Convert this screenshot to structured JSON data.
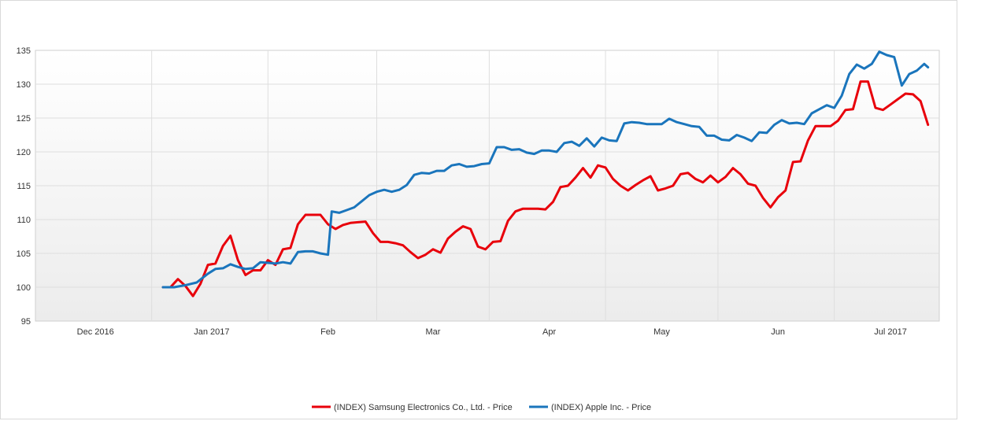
{
  "chart_data": {
    "type": "line",
    "title": "",
    "xlabel": "",
    "ylabel": "",
    "ylim": [
      95,
      135
    ],
    "yticks": [
      95,
      100,
      105,
      110,
      115,
      120,
      125,
      130,
      135
    ],
    "xlim": [
      "2016-11-15",
      "2017-07-14"
    ],
    "xticks": [
      {
        "label": "Dec 2016",
        "date": "2016-12-01"
      },
      {
        "label": "Jan 2017",
        "date": "2017-01-01"
      },
      {
        "label": "Feb",
        "date": "2017-02-01"
      },
      {
        "label": "Mar",
        "date": "2017-03-01"
      },
      {
        "label": "Apr",
        "date": "2017-04-01"
      },
      {
        "label": "May",
        "date": "2017-05-01"
      },
      {
        "label": "Jun",
        "date": "2017-06-01"
      },
      {
        "label": "Jul 2017",
        "date": "2017-07-01"
      }
    ],
    "grid": true,
    "legend_position": "bottom",
    "series": [
      {
        "name": "(INDEX) Samsung Electronics Co., Ltd. - Price",
        "color": "#e8000b",
        "points": [
          [
            "2016-12-19",
            100.0
          ],
          [
            "2016-12-21",
            100.0
          ],
          [
            "2016-12-23",
            101.2
          ],
          [
            "2016-12-25",
            100.2
          ],
          [
            "2016-12-27",
            98.7
          ],
          [
            "2016-12-29",
            100.5
          ],
          [
            "2016-12-31",
            103.3
          ],
          [
            "2017-01-02",
            103.5
          ],
          [
            "2017-01-04",
            106.1
          ],
          [
            "2017-01-06",
            107.6
          ],
          [
            "2017-01-08",
            104.0
          ],
          [
            "2017-01-10",
            101.8
          ],
          [
            "2017-01-12",
            102.5
          ],
          [
            "2017-01-14",
            102.5
          ],
          [
            "2017-01-16",
            104.0
          ],
          [
            "2017-01-18",
            103.3
          ],
          [
            "2017-01-20",
            105.6
          ],
          [
            "2017-01-22",
            105.8
          ],
          [
            "2017-01-24",
            109.3
          ],
          [
            "2017-01-26",
            110.7
          ],
          [
            "2017-01-28",
            110.7
          ],
          [
            "2017-01-30",
            110.7
          ],
          [
            "2017-02-01",
            109.3
          ],
          [
            "2017-02-03",
            108.6
          ],
          [
            "2017-02-05",
            109.2
          ],
          [
            "2017-02-07",
            109.5
          ],
          [
            "2017-02-09",
            109.6
          ],
          [
            "2017-02-11",
            109.7
          ],
          [
            "2017-02-13",
            108.0
          ],
          [
            "2017-02-15",
            106.7
          ],
          [
            "2017-02-17",
            106.7
          ],
          [
            "2017-02-19",
            106.5
          ],
          [
            "2017-02-21",
            106.2
          ],
          [
            "2017-02-23",
            105.2
          ],
          [
            "2017-02-25",
            104.3
          ],
          [
            "2017-02-27",
            104.8
          ],
          [
            "2017-03-01",
            105.6
          ],
          [
            "2017-03-03",
            105.1
          ],
          [
            "2017-03-05",
            107.2
          ],
          [
            "2017-03-07",
            108.2
          ],
          [
            "2017-03-09",
            109.0
          ],
          [
            "2017-03-11",
            108.6
          ],
          [
            "2017-03-13",
            106.0
          ],
          [
            "2017-03-15",
            105.6
          ],
          [
            "2017-03-17",
            106.7
          ],
          [
            "2017-03-19",
            106.8
          ],
          [
            "2017-03-21",
            109.8
          ],
          [
            "2017-03-23",
            111.2
          ],
          [
            "2017-03-25",
            111.6
          ],
          [
            "2017-03-27",
            111.6
          ],
          [
            "2017-03-29",
            111.6
          ],
          [
            "2017-03-31",
            111.5
          ],
          [
            "2017-04-02",
            112.6
          ],
          [
            "2017-04-04",
            114.8
          ],
          [
            "2017-04-06",
            115.0
          ],
          [
            "2017-04-08",
            116.2
          ],
          [
            "2017-04-10",
            117.6
          ],
          [
            "2017-04-12",
            116.2
          ],
          [
            "2017-04-14",
            118.0
          ],
          [
            "2017-04-16",
            117.7
          ],
          [
            "2017-04-18",
            116.0
          ],
          [
            "2017-04-20",
            115.0
          ],
          [
            "2017-04-22",
            114.3
          ],
          [
            "2017-04-24",
            115.1
          ],
          [
            "2017-04-26",
            115.8
          ],
          [
            "2017-04-28",
            116.4
          ],
          [
            "2017-04-30",
            114.3
          ],
          [
            "2017-05-02",
            114.6
          ],
          [
            "2017-05-04",
            115.0
          ],
          [
            "2017-05-06",
            116.7
          ],
          [
            "2017-05-08",
            116.9
          ],
          [
            "2017-05-10",
            116.0
          ],
          [
            "2017-05-12",
            115.5
          ],
          [
            "2017-05-14",
            116.5
          ],
          [
            "2017-05-16",
            115.5
          ],
          [
            "2017-05-18",
            116.3
          ],
          [
            "2017-05-20",
            117.6
          ],
          [
            "2017-05-22",
            116.7
          ],
          [
            "2017-05-24",
            115.3
          ],
          [
            "2017-05-26",
            115.0
          ],
          [
            "2017-05-28",
            113.2
          ],
          [
            "2017-05-30",
            111.8
          ],
          [
            "2017-06-01",
            113.3
          ],
          [
            "2017-06-03",
            114.3
          ],
          [
            "2017-06-05",
            118.5
          ],
          [
            "2017-06-07",
            118.6
          ],
          [
            "2017-06-09",
            121.7
          ],
          [
            "2017-06-11",
            123.8
          ],
          [
            "2017-06-13",
            123.8
          ],
          [
            "2017-06-15",
            123.8
          ],
          [
            "2017-06-17",
            124.6
          ],
          [
            "2017-06-19",
            126.2
          ],
          [
            "2017-06-21",
            126.3
          ],
          [
            "2017-06-23",
            130.4
          ],
          [
            "2017-06-25",
            130.4
          ],
          [
            "2017-06-27",
            126.5
          ],
          [
            "2017-06-29",
            126.2
          ],
          [
            "2017-07-01",
            127.0
          ],
          [
            "2017-07-03",
            127.8
          ],
          [
            "2017-07-05",
            128.6
          ],
          [
            "2017-07-07",
            128.5
          ],
          [
            "2017-07-09",
            127.5
          ],
          [
            "2017-07-11",
            124.0
          ]
        ]
      },
      {
        "name": "(INDEX) Apple Inc. - Price",
        "color": "#1a75bc",
        "points": [
          [
            "2016-12-19",
            100.0
          ],
          [
            "2016-12-22",
            100.0
          ],
          [
            "2016-12-25",
            100.3
          ],
          [
            "2016-12-28",
            100.7
          ],
          [
            "2016-12-31",
            102.0
          ],
          [
            "2017-01-02",
            102.7
          ],
          [
            "2017-01-04",
            102.8
          ],
          [
            "2017-01-06",
            103.4
          ],
          [
            "2017-01-08",
            103.0
          ],
          [
            "2017-01-10",
            102.7
          ],
          [
            "2017-01-12",
            102.8
          ],
          [
            "2017-01-14",
            103.7
          ],
          [
            "2017-01-16",
            103.6
          ],
          [
            "2017-01-18",
            103.5
          ],
          [
            "2017-01-20",
            103.7
          ],
          [
            "2017-01-22",
            103.5
          ],
          [
            "2017-01-24",
            105.2
          ],
          [
            "2017-01-26",
            105.3
          ],
          [
            "2017-01-28",
            105.3
          ],
          [
            "2017-01-30",
            105.0
          ],
          [
            "2017-02-01",
            104.8
          ],
          [
            "2017-02-02",
            111.2
          ],
          [
            "2017-02-04",
            111.0
          ],
          [
            "2017-02-06",
            111.4
          ],
          [
            "2017-02-08",
            111.8
          ],
          [
            "2017-02-10",
            112.7
          ],
          [
            "2017-02-12",
            113.6
          ],
          [
            "2017-02-14",
            114.1
          ],
          [
            "2017-02-16",
            114.4
          ],
          [
            "2017-02-18",
            114.1
          ],
          [
            "2017-02-20",
            114.4
          ],
          [
            "2017-02-22",
            115.1
          ],
          [
            "2017-02-24",
            116.6
          ],
          [
            "2017-02-26",
            116.9
          ],
          [
            "2017-02-28",
            116.8
          ],
          [
            "2017-03-02",
            117.2
          ],
          [
            "2017-03-04",
            117.2
          ],
          [
            "2017-03-06",
            118.0
          ],
          [
            "2017-03-08",
            118.2
          ],
          [
            "2017-03-10",
            117.8
          ],
          [
            "2017-03-12",
            117.9
          ],
          [
            "2017-03-14",
            118.2
          ],
          [
            "2017-03-16",
            118.3
          ],
          [
            "2017-03-18",
            120.7
          ],
          [
            "2017-03-20",
            120.7
          ],
          [
            "2017-03-22",
            120.3
          ],
          [
            "2017-03-24",
            120.4
          ],
          [
            "2017-03-26",
            119.9
          ],
          [
            "2017-03-28",
            119.7
          ],
          [
            "2017-03-30",
            120.2
          ],
          [
            "2017-04-01",
            120.2
          ],
          [
            "2017-04-03",
            120.0
          ],
          [
            "2017-04-05",
            121.3
          ],
          [
            "2017-04-07",
            121.5
          ],
          [
            "2017-04-09",
            120.9
          ],
          [
            "2017-04-11",
            122.0
          ],
          [
            "2017-04-13",
            120.8
          ],
          [
            "2017-04-15",
            122.1
          ],
          [
            "2017-04-17",
            121.7
          ],
          [
            "2017-04-19",
            121.6
          ],
          [
            "2017-04-21",
            124.2
          ],
          [
            "2017-04-23",
            124.4
          ],
          [
            "2017-04-25",
            124.3
          ],
          [
            "2017-04-27",
            124.1
          ],
          [
            "2017-04-29",
            124.1
          ],
          [
            "2017-05-01",
            124.1
          ],
          [
            "2017-05-03",
            124.9
          ],
          [
            "2017-05-05",
            124.4
          ],
          [
            "2017-05-07",
            124.1
          ],
          [
            "2017-05-09",
            123.8
          ],
          [
            "2017-05-11",
            123.7
          ],
          [
            "2017-05-13",
            122.4
          ],
          [
            "2017-05-15",
            122.4
          ],
          [
            "2017-05-17",
            121.8
          ],
          [
            "2017-05-19",
            121.7
          ],
          [
            "2017-05-21",
            122.5
          ],
          [
            "2017-05-23",
            122.1
          ],
          [
            "2017-05-25",
            121.6
          ],
          [
            "2017-05-27",
            122.9
          ],
          [
            "2017-05-29",
            122.8
          ],
          [
            "2017-05-31",
            124.0
          ],
          [
            "2017-06-02",
            124.7
          ],
          [
            "2017-06-04",
            124.2
          ],
          [
            "2017-06-06",
            124.3
          ],
          [
            "2017-06-08",
            124.1
          ],
          [
            "2017-06-10",
            125.7
          ],
          [
            "2017-06-12",
            126.3
          ],
          [
            "2017-06-14",
            126.9
          ],
          [
            "2017-06-16",
            126.5
          ],
          [
            "2017-06-18",
            128.3
          ],
          [
            "2017-06-20",
            131.5
          ],
          [
            "2017-06-22",
            132.9
          ],
          [
            "2017-06-24",
            132.3
          ],
          [
            "2017-06-26",
            133.0
          ],
          [
            "2017-06-28",
            134.8
          ],
          [
            "2017-06-30",
            134.3
          ],
          [
            "2017-07-02",
            134.0
          ],
          [
            "2017-07-04",
            129.8
          ],
          [
            "2017-07-06",
            131.5
          ],
          [
            "2017-07-08",
            132.0
          ],
          [
            "2017-07-10",
            133.0
          ],
          [
            "2017-07-11",
            132.5
          ]
        ]
      }
    ]
  }
}
